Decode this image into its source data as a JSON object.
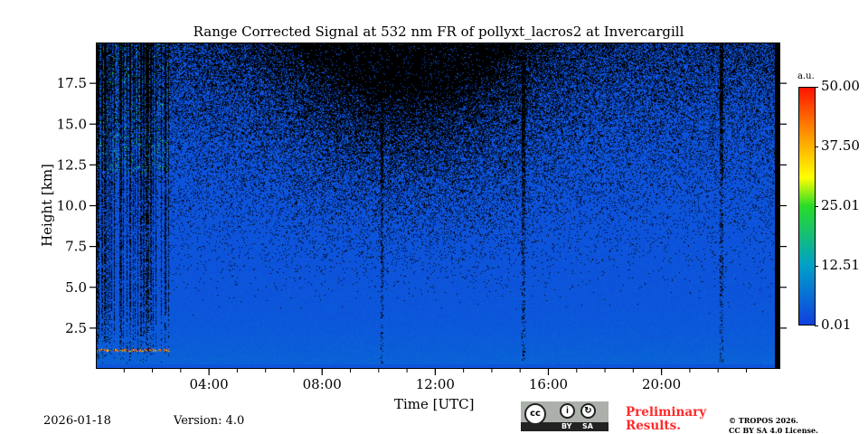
{
  "chart_data": {
    "type": "heatmap",
    "title": "Range Corrected Signal at 532 nm FR of pollyxt_lacros2 at Invercargill",
    "xlabel": "Time [UTC]",
    "ylabel": "Height [km]",
    "xlim": [
      0,
      24.2
    ],
    "ylim": [
      0,
      20
    ],
    "x_ticks": [
      {
        "v": 4,
        "label": "04:00"
      },
      {
        "v": 8,
        "label": "08:00"
      },
      {
        "v": 12,
        "label": "12:00"
      },
      {
        "v": 16,
        "label": "16:00"
      },
      {
        "v": 20,
        "label": "20:00"
      }
    ],
    "y_ticks": [
      {
        "v": 2.5,
        "label": "2.5"
      },
      {
        "v": 5,
        "label": "5.0"
      },
      {
        "v": 7.5,
        "label": "7.5"
      },
      {
        "v": 10,
        "label": "10.0"
      },
      {
        "v": 12.5,
        "label": "12.5"
      },
      {
        "v": 15,
        "label": "15.0"
      },
      {
        "v": 17.5,
        "label": "17.5"
      }
    ],
    "colorbar": {
      "unit": "a.u.",
      "min": 0.01,
      "max": 50.0,
      "ticks": [
        {
          "v": 0.01,
          "label": "0.01"
        },
        {
          "v": 12.51,
          "label": "12.51"
        },
        {
          "v": 25.01,
          "label": "25.01"
        },
        {
          "v": 37.5,
          "label": "37.50"
        },
        {
          "v": 50.0,
          "label": "50.00"
        }
      ]
    },
    "data_end_hour": 23.9,
    "dark_stripes_hours": [
      10.1,
      15.1,
      22.1
    ],
    "noisy_period_hours": [
      0,
      2.6
    ],
    "low_layer_top_km": 1.1
  },
  "footer": {
    "date": "2026-01-18",
    "version": "Version: 4.0",
    "license_badge": {
      "cc": "cc",
      "by": "BY",
      "sa": "SA"
    },
    "preliminary": [
      "Preliminary",
      "Results."
    ],
    "copyright": [
      "© TROPOS 2026.",
      "CC BY SA 4.0 License."
    ]
  }
}
